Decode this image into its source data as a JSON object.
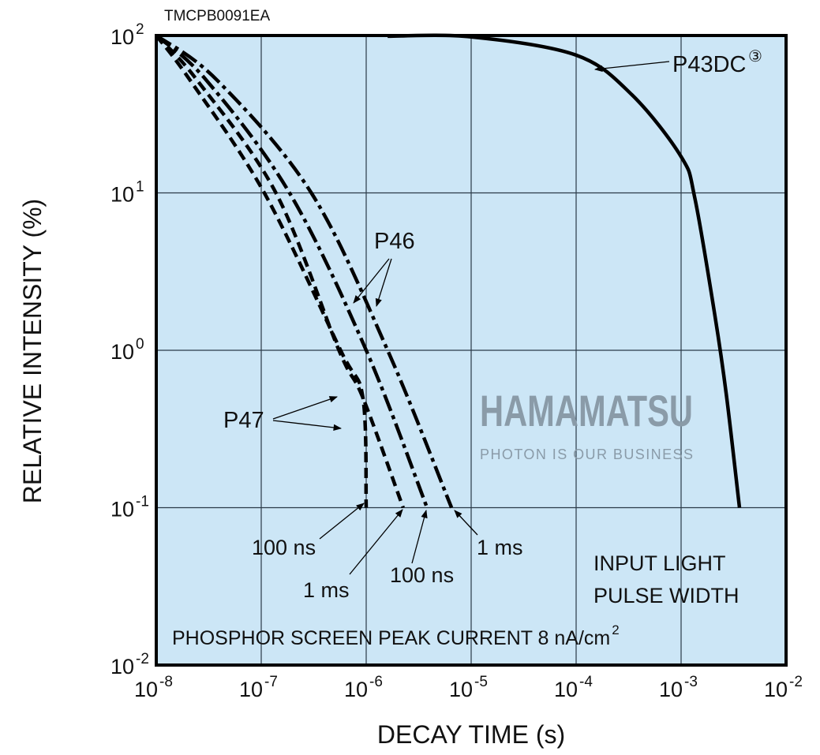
{
  "chart_data": {
    "type": "line",
    "code": "TMCPB0091EA",
    "xlabel": "DECAY TIME (s)",
    "ylabel": "RELATIVE INTENSITY (%)",
    "x_scale": "log",
    "y_scale": "log",
    "xlim": [
      1e-08,
      0.01
    ],
    "ylim": [
      0.01,
      100.0
    ],
    "grid": true,
    "background_color": "#cce6f6",
    "x_ticks": [
      {
        "base": "10",
        "exp": "-8"
      },
      {
        "base": "10",
        "exp": "-7"
      },
      {
        "base": "10",
        "exp": "-6"
      },
      {
        "base": "10",
        "exp": "-5"
      },
      {
        "base": "10",
        "exp": "-4"
      },
      {
        "base": "10",
        "exp": "-3"
      },
      {
        "base": "10",
        "exp": "-2"
      }
    ],
    "y_ticks": [
      {
        "base": "10",
        "exp": "2"
      },
      {
        "base": "10",
        "exp": "1"
      },
      {
        "base": "10",
        "exp": "0"
      },
      {
        "base": "10",
        "exp": "-1"
      },
      {
        "base": "10",
        "exp": "-2"
      }
    ],
    "series": [
      {
        "phosphor": "P47",
        "pulse": "100 ns",
        "style": "dashed",
        "x": [
          1e-08,
          2.1e-08,
          1.07e-07,
          5.7e-07,
          9.3e-07,
          1e-06
        ],
        "y": [
          100,
          52,
          10,
          1.0,
          0.5,
          0.1
        ]
      },
      {
        "phosphor": "P47",
        "pulse": "1 ms",
        "style": "dashed",
        "x": [
          1e-08,
          2.45e-08,
          1.38e-07,
          5.5e-07,
          9.3e-07,
          2.25e-06
        ],
        "y": [
          100,
          52,
          10,
          1.0,
          0.5,
          0.1
        ]
      },
      {
        "phosphor": "P46",
        "pulse": "100 ns",
        "style": "dash-dot",
        "x": [
          1e-08,
          3e-08,
          1.86e-07,
          1e-06,
          3.8e-06
        ],
        "y": [
          100,
          52,
          10,
          1.0,
          0.1
        ]
      },
      {
        "phosphor": "P46",
        "pulse": "1 ms",
        "style": "dash-dot",
        "x": [
          1e-08,
          3.8e-08,
          3e-07,
          1.6e-06,
          6.5e-06
        ],
        "y": [
          100,
          52,
          10,
          1.0,
          0.1
        ]
      },
      {
        "phosphor": "P43DC",
        "style": "solid",
        "x": [
          1.6e-06,
          1e-05,
          0.0001,
          0.00034,
          0.001,
          0.00135,
          0.0021,
          0.0027,
          0.0036
        ],
        "y": [
          99,
          98,
          75,
          42,
          17,
          9.3,
          1.66,
          0.52,
          0.1
        ]
      }
    ],
    "annotations": {
      "p43dc": "P43DC",
      "p43dc_note": "③",
      "p46": "P46",
      "p47": "P47",
      "p47_100ns": "100 ns",
      "p47_1ms": "1 ms",
      "p46_100ns": "100 ns",
      "p46_1ms": "1 ms",
      "legend_line1": "INPUT LIGHT",
      "legend_line2": "PULSE WIDTH",
      "condition": "PHOSPHOR SCREEN PEAK CURRENT 8 nA/cm",
      "condition_sup": "2"
    },
    "watermark": {
      "main": "HAMAMATSU",
      "tagline": "PHOTON IS OUR BUSINESS"
    }
  }
}
